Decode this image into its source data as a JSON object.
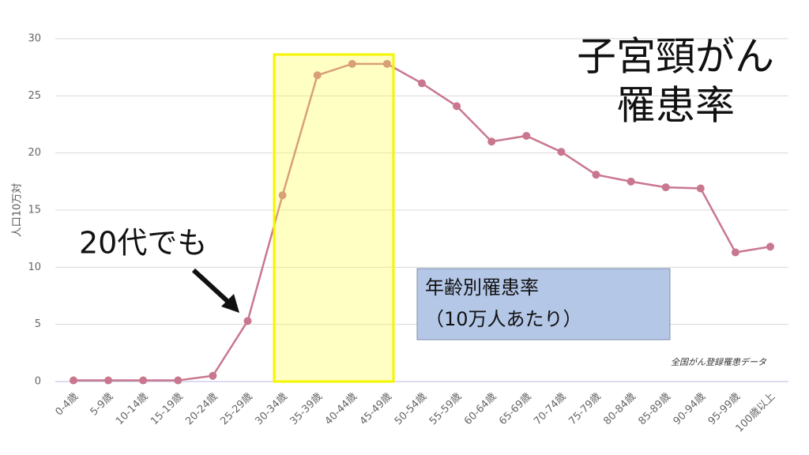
{
  "chart_data": {
    "type": "line",
    "title_lines": [
      "子宮頸がん",
      "罹患率"
    ],
    "y_label": "人口10万対",
    "annotation": "20代でも",
    "legend_box_lines": [
      "年齢別罹患率",
      "（10万人あたり）"
    ],
    "source": "全国がん登録罹患データ",
    "categories": [
      "0-4歳",
      "5-9歳",
      "10-14歳",
      "15-19歳",
      "20-24歳",
      "25-29歳",
      "30-34歳",
      "35-39歳",
      "40-44歳",
      "45-49歳",
      "50-54歳",
      "55-59歳",
      "60-64歳",
      "65-69歳",
      "70-74歳",
      "75-79歳",
      "80-84歳",
      "85-89歳",
      "90-94歳",
      "95-99歳",
      "100歳以上"
    ],
    "series": [
      {
        "color": "#c9778f",
        "values": [
          0.1,
          0.1,
          0.1,
          0.1,
          0.5,
          5.3,
          16.3,
          26.8,
          27.8,
          27.8,
          26.1,
          24.1,
          21.0,
          21.5,
          20.1,
          18.1,
          17.5,
          17.0,
          16.9,
          11.3,
          11.8
        ]
      }
    ],
    "ylim": [
      0,
      30
    ],
    "yticks": [
      0,
      5,
      10,
      15,
      20,
      25,
      30
    ],
    "grid": true
  }
}
